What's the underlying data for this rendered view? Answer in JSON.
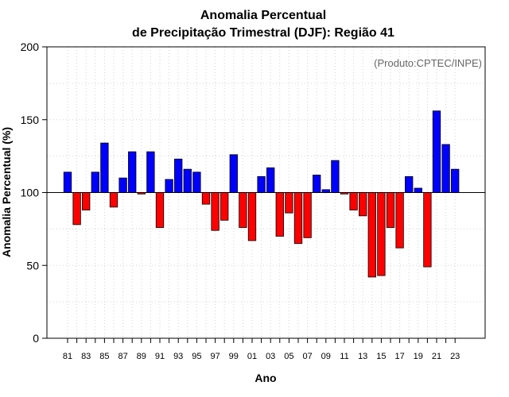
{
  "chart_data": {
    "type": "bar",
    "title_line1": "Anomalia Percentual",
    "title_line2": "de Precipitação Trimestral (DJF): Região 41",
    "xlabel": "Ano",
    "ylabel": "Anomalia Percentual (%)",
    "credit": "(Produto:CPTEC/INPE)",
    "ylim": [
      0,
      200
    ],
    "yticks": [
      "0",
      "50",
      "100",
      "150",
      "200"
    ],
    "baseline": 100,
    "grid": true,
    "colors": {
      "above": "#0000ff",
      "below": "#ff0000",
      "outline": "#000000",
      "grid": "#d3d3d3"
    },
    "categories": [
      "81",
      "82",
      "83",
      "84",
      "85",
      "86",
      "87",
      "88",
      "89",
      "90",
      "91",
      "92",
      "93",
      "94",
      "95",
      "96",
      "97",
      "98",
      "99",
      "00",
      "01",
      "02",
      "03",
      "04",
      "05",
      "06",
      "07",
      "08",
      "09",
      "10",
      "11",
      "12",
      "13",
      "14",
      "15",
      "16",
      "17",
      "18",
      "19",
      "20",
      "21",
      "22",
      "23"
    ],
    "xtick_labels": [
      "81",
      "83",
      "85",
      "87",
      "89",
      "91",
      "93",
      "95",
      "97",
      "99",
      "01",
      "03",
      "05",
      "07",
      "09",
      "11",
      "13",
      "15",
      "17",
      "19",
      "21",
      "23"
    ],
    "values": [
      114,
      78,
      88,
      114,
      134,
      90,
      110,
      128,
      99,
      128,
      76,
      109,
      123,
      116,
      114,
      92,
      74,
      81,
      126,
      76,
      67,
      111,
      117,
      70,
      86,
      65,
      69,
      112,
      102,
      122,
      99,
      88,
      84,
      42,
      43,
      76,
      62,
      111,
      103,
      49,
      156,
      133,
      116
    ]
  }
}
